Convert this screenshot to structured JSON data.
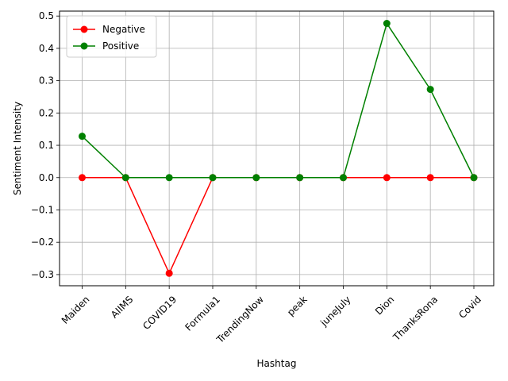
{
  "chart_data": {
    "type": "line",
    "title": "",
    "xlabel": "Hashtag",
    "ylabel": "Sentiment Intensity",
    "categories": [
      "Maiden",
      "AIIMS",
      "COVID19",
      "Formula1",
      "TrendingNow",
      "peak",
      "juneJuly",
      "Dion",
      "ThanksRona",
      "Covid"
    ],
    "series": [
      {
        "name": "Negative",
        "color": "#ff0000",
        "marker": "circle",
        "values": [
          0,
          0,
          -0.296,
          0,
          0,
          0,
          0,
          0,
          0,
          0
        ]
      },
      {
        "name": "Positive",
        "color": "#008000",
        "marker": "circle",
        "values": [
          0.128,
          0,
          0,
          0,
          0,
          0,
          0,
          0.477,
          0.273,
          0
        ]
      }
    ],
    "ylim": [
      -0.3346,
      0.5152
    ],
    "yticks": [
      -0.3,
      -0.2,
      -0.1,
      0.0,
      0.1,
      0.2,
      0.3,
      0.4,
      0.5
    ],
    "ytick_labels": [
      "−0.3",
      "−0.2",
      "−0.1",
      "0.0",
      "0.1",
      "0.2",
      "0.3",
      "0.4",
      "0.5"
    ],
    "grid": true,
    "legend_position": "top-left"
  }
}
